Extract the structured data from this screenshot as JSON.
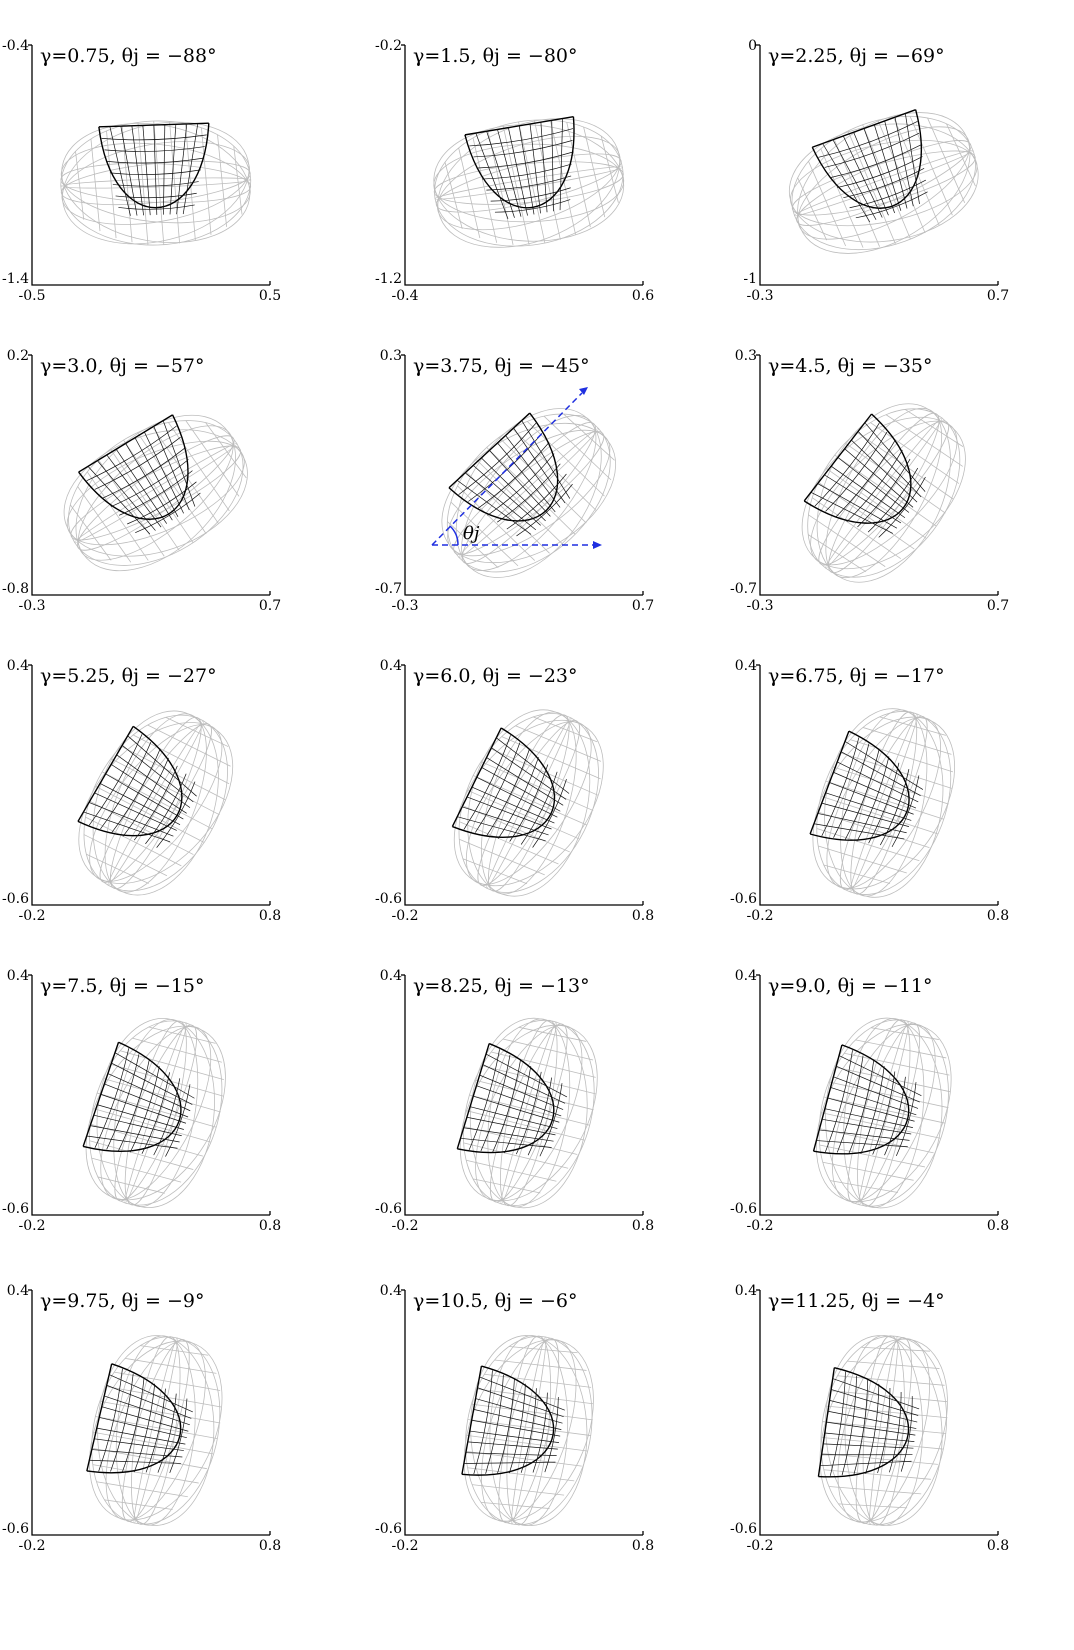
{
  "panels": [
    {
      "gamma": "0.75",
      "theta": "−88°",
      "title": "γ=0.75, θj = −88°",
      "x_ticks": [
        "-0.5",
        "0.5"
      ],
      "y_ticks": [
        "-0.4",
        "-1.4"
      ]
    },
    {
      "gamma": "1.5",
      "theta": "−80°",
      "title": "γ=1.5, θj = −80°",
      "x_ticks": [
        "-0.4",
        "0.6"
      ],
      "y_ticks": [
        "-0.2",
        "-1.2"
      ]
    },
    {
      "gamma": "2.25",
      "theta": "−69°",
      "title": "γ=2.25, θj = −69°",
      "x_ticks": [
        "-0.3",
        "0.7"
      ],
      "y_ticks": [
        "0",
        "-1"
      ]
    },
    {
      "gamma": "3.0",
      "theta": "−57°",
      "title": "γ=3.0, θj = −57°",
      "x_ticks": [
        "-0.3",
        "0.7"
      ],
      "y_ticks": [
        "0.2",
        "-0.8"
      ]
    },
    {
      "gamma": "3.75",
      "theta": "−45°",
      "title": "γ=3.75, θj = −45°",
      "x_ticks": [
        "-0.3",
        "0.7"
      ],
      "y_ticks": [
        "0.3",
        "-0.7"
      ]
    },
    {
      "gamma": "4.5",
      "theta": "−35°",
      "title": "γ=4.5, θj = −35°",
      "x_ticks": [
        "-0.3",
        "0.7"
      ],
      "y_ticks": [
        "0.3",
        "-0.7"
      ]
    },
    {
      "gamma": "5.25",
      "theta": "−27°",
      "title": "γ=5.25, θj = −27°",
      "x_ticks": [
        "-0.2",
        "0.8"
      ],
      "y_ticks": [
        "0.4",
        "-0.6"
      ]
    },
    {
      "gamma": "6.0",
      "theta": "−23°",
      "title": "γ=6.0, θj = −23°",
      "x_ticks": [
        "-0.2",
        "0.8"
      ],
      "y_ticks": [
        "0.4",
        "-0.6"
      ]
    },
    {
      "gamma": "6.75",
      "theta": "−17°",
      "title": "γ=6.75, θj = −17°",
      "x_ticks": [
        "-0.2",
        "0.8"
      ],
      "y_ticks": [
        "0.4",
        "-0.6"
      ]
    },
    {
      "gamma": "7.5",
      "theta": "−15°",
      "title": "γ=7.5, θj = −15°",
      "x_ticks": [
        "-0.2",
        "0.8"
      ],
      "y_ticks": [
        "0.4",
        "-0.6"
      ]
    },
    {
      "gamma": "8.25",
      "theta": "−13°",
      "title": "γ=8.25, θj = −13°",
      "x_ticks": [
        "-0.2",
        "0.8"
      ],
      "y_ticks": [
        "0.4",
        "-0.6"
      ]
    },
    {
      "gamma": "9.0",
      "theta": "−11°",
      "title": "γ=9.0, θj = −11°",
      "x_ticks": [
        "-0.2",
        "0.8"
      ],
      "y_ticks": [
        "0.4",
        "-0.6"
      ]
    },
    {
      "gamma": "9.75",
      "theta": "−9°",
      "title": "γ=9.75, θj = −9°",
      "x_ticks": [
        "-0.2",
        "0.8"
      ],
      "y_ticks": [
        "0.4",
        "-0.6"
      ]
    },
    {
      "gamma": "10.5",
      "theta": "−6°",
      "title": "γ=10.5, θj = −6°",
      "x_ticks": [
        "-0.2",
        "0.8"
      ],
      "y_ticks": [
        "0.4",
        "-0.6"
      ]
    },
    {
      "gamma": "11.25",
      "theta": "−4°",
      "title": "γ=11.25, θj = −4°",
      "x_ticks": [
        "-0.2",
        "0.8"
      ],
      "y_ticks": [
        "0.4",
        "-0.6"
      ]
    }
  ],
  "annotation": {
    "panel_index": 4,
    "label": "θj"
  },
  "colors": {
    "annotation_line": "#1f2fe0",
    "outer_mesh": "#bdbdbd",
    "inner_mesh": "#111111"
  }
}
